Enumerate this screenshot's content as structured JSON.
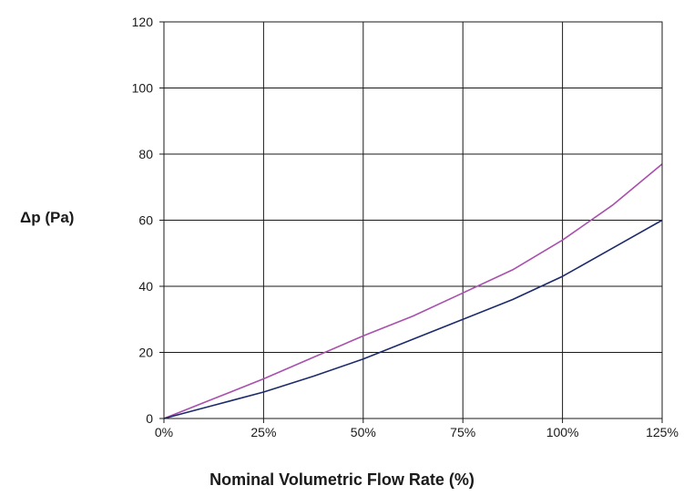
{
  "chart_data": {
    "type": "line",
    "title": "",
    "xlabel": "Nominal Volumetric Flow Rate (%)",
    "ylabel": "Δp (Pa)",
    "x_ticks": [
      "0%",
      "25%",
      "50%",
      "75%",
      "100%",
      "125%"
    ],
    "y_ticks": [
      "0",
      "20",
      "40",
      "60",
      "80",
      "100",
      "120"
    ],
    "xlim": [
      0,
      125
    ],
    "ylim": [
      0,
      120
    ],
    "grid": true,
    "legend": "none",
    "series": [
      {
        "color": "#a94fae",
        "x": [
          0,
          12.5,
          25,
          37.5,
          50,
          62.5,
          75,
          87.5,
          100,
          112.5,
          125
        ],
        "y": [
          0,
          6,
          12,
          18.5,
          25,
          31,
          38,
          45,
          54,
          64.5,
          77
        ]
      },
      {
        "color": "#1c2a6b",
        "x": [
          0,
          12.5,
          25,
          37.5,
          50,
          62.5,
          75,
          87.5,
          100,
          112.5,
          125
        ],
        "y": [
          0,
          4,
          8,
          12.8,
          18,
          24,
          30,
          36,
          43,
          51.5,
          60
        ]
      }
    ]
  }
}
